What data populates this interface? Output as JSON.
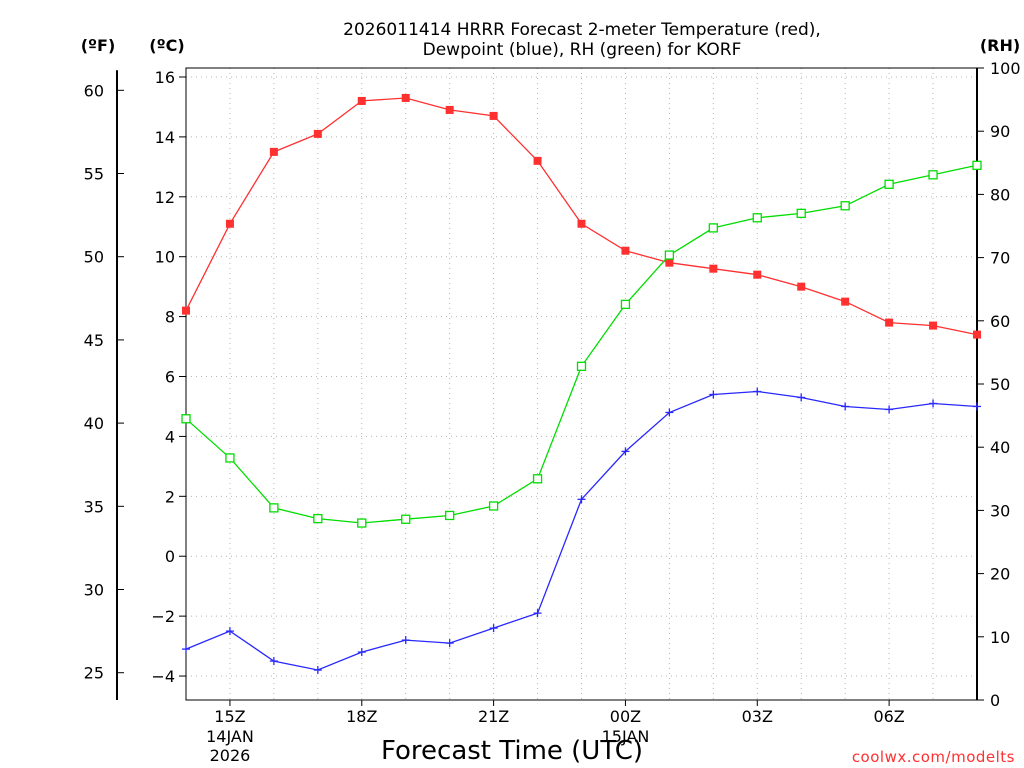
{
  "chart_data": {
    "type": "line",
    "title_line1": "2026011414 HRRR Forecast 2-meter Temperature (red),",
    "title_line2": "Dewpoint (blue), RH (green) for KORF",
    "left_outer_axis_label": "(ºF)",
    "left_inner_axis_label": "(ºC)",
    "right_axis_label": "(RH)",
    "xlabel": "Forecast Time (UTC)",
    "credit": "coolwx.com/modelts",
    "x_hours": [
      14,
      15,
      16,
      17,
      18,
      19,
      20,
      21,
      22,
      23,
      24,
      25,
      26,
      27,
      28,
      29,
      30,
      31,
      32
    ],
    "xlim": [
      14,
      32
    ],
    "x_ticks": [
      {
        "x": 15,
        "label": "15Z",
        "date": "14JAN",
        "year": "2026"
      },
      {
        "x": 18,
        "label": "18Z"
      },
      {
        "x": 21,
        "label": "21Z"
      },
      {
        "x": 24,
        "label": "00Z",
        "date": "15JAN"
      },
      {
        "x": 27,
        "label": "03Z"
      },
      {
        "x": 30,
        "label": "06Z"
      }
    ],
    "celsius_axis": {
      "ylim": [
        -4.8,
        16.3
      ],
      "ticks": [
        -4,
        -2,
        0,
        2,
        4,
        6,
        8,
        10,
        12,
        14,
        16
      ]
    },
    "fahrenheit_axis": {
      "ticks": [
        25,
        30,
        35,
        40,
        45,
        50,
        55,
        60
      ]
    },
    "rh_axis": {
      "ylim": [
        0,
        100
      ],
      "ticks": [
        0,
        10,
        20,
        30,
        40,
        50,
        60,
        70,
        80,
        90,
        100
      ]
    },
    "series": [
      {
        "name": "Temperature",
        "units": "C",
        "color": "#ff3030",
        "marker": "filled-square",
        "values": [
          8.2,
          11.1,
          13.5,
          14.1,
          15.2,
          15.3,
          14.9,
          14.7,
          13.2,
          11.1,
          10.2,
          9.8,
          9.6,
          9.4,
          9.0,
          8.5,
          7.8,
          7.7,
          7.4
        ]
      },
      {
        "name": "Dewpoint",
        "units": "C",
        "color": "#2828ff",
        "marker": "plus",
        "values": [
          -3.1,
          -2.5,
          -3.5,
          -3.8,
          -3.2,
          -2.8,
          -2.9,
          -2.4,
          -1.9,
          1.9,
          3.5,
          4.8,
          5.4,
          5.5,
          5.3,
          5.0,
          4.9,
          5.1,
          5.0
        ]
      },
      {
        "name": "RH",
        "units": "%",
        "color": "#00dd00",
        "marker": "open-square",
        "values": [
          44.5,
          38.3,
          30.4,
          28.7,
          28.0,
          28.6,
          29.2,
          30.7,
          35.0,
          52.8,
          62.6,
          70.4,
          74.7,
          76.3,
          77.0,
          78.2,
          81.6,
          83.1,
          84.6
        ]
      }
    ]
  }
}
